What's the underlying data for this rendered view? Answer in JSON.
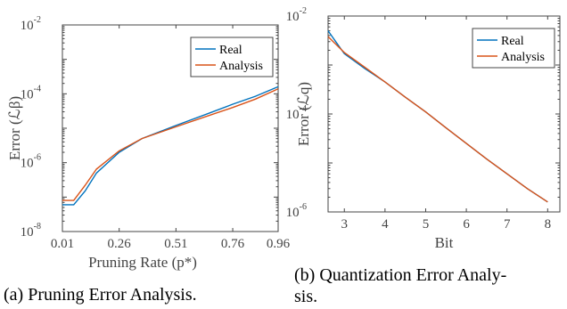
{
  "colors": {
    "real": "#0072BD",
    "analysis": "#D95319",
    "axis": "#444444"
  },
  "chart_data": [
    {
      "type": "line",
      "log_y": true,
      "xlabel": "Pruning Rate (p*)",
      "ylabel": "Error (ℒβ)",
      "xlim": [
        0.01,
        0.96
      ],
      "ylim": [
        1e-08,
        0.01
      ],
      "x_ticks": [
        0.01,
        0.26,
        0.51,
        0.76,
        0.96
      ],
      "x_tick_labels": [
        "0.01",
        "0.26",
        "0.51",
        "0.76",
        "0.96"
      ],
      "y_ticks": [
        1e-08,
        1e-06,
        0.0001,
        0.01
      ],
      "y_tick_base": [
        "10",
        "10",
        "10",
        "10"
      ],
      "y_tick_exp": [
        "-8",
        "-6",
        "-4",
        "-2"
      ],
      "legend": {
        "position": "top-right",
        "entries": [
          "Real",
          "Analysis"
        ]
      },
      "grid": false,
      "series": [
        {
          "name": "Real",
          "x": [
            0.01,
            0.06,
            0.11,
            0.16,
            0.26,
            0.36,
            0.51,
            0.66,
            0.76,
            0.86,
            0.96
          ],
          "y": [
            6e-08,
            6e-08,
            1.5e-07,
            5e-07,
            2e-06,
            5e-06,
            1.2e-05,
            2.8e-05,
            5e-05,
            8.5e-05,
            0.00016
          ]
        },
        {
          "name": "Analysis",
          "x": [
            0.01,
            0.06,
            0.11,
            0.16,
            0.26,
            0.36,
            0.51,
            0.66,
            0.76,
            0.86,
            0.96
          ],
          "y": [
            8e-08,
            8e-08,
            2.2e-07,
            6.5e-07,
            2.2e-06,
            5e-06,
            1.1e-05,
            2.4e-05,
            4e-05,
            7e-05,
            0.00014
          ]
        }
      ]
    },
    {
      "type": "line",
      "log_y": true,
      "xlabel": "Bit",
      "ylabel": "Error (ℒq)",
      "xlim": [
        2.6,
        8.3
      ],
      "ylim": [
        1e-06,
        0.01
      ],
      "x_ticks": [
        3,
        4,
        5,
        6,
        7,
        8
      ],
      "x_tick_labels": [
        "3",
        "4",
        "5",
        "6",
        "7",
        "8"
      ],
      "y_ticks": [
        1e-06,
        0.0001,
        0.01
      ],
      "y_tick_base": [
        "10",
        "10",
        "10"
      ],
      "y_tick_exp": [
        "-6",
        "-4",
        "-2"
      ],
      "legend": {
        "position": "top-right",
        "entries": [
          "Real",
          "Analysis"
        ]
      },
      "grid": false,
      "series": [
        {
          "name": "Real",
          "x": [
            2.6,
            3,
            3.5,
            4,
            4.5,
            5,
            5.5,
            6,
            6.5,
            7,
            7.5,
            8
          ],
          "y": [
            0.005,
            0.0017,
            0.00085,
            0.00045,
            0.00022,
            0.00011,
            5.2e-05,
            2.5e-05,
            1.2e-05,
            6e-06,
            3e-06,
            1.6e-06
          ]
        },
        {
          "name": "Analysis",
          "x": [
            2.6,
            3,
            3.5,
            4,
            4.5,
            5,
            5.5,
            6,
            6.5,
            7,
            7.5,
            8
          ],
          "y": [
            0.0038,
            0.0018,
            0.0009,
            0.00045,
            0.00022,
            0.00011,
            5.2e-05,
            2.5e-05,
            1.2e-05,
            6e-06,
            3e-06,
            1.6e-06
          ]
        }
      ]
    }
  ],
  "captions": {
    "a": "(a) Pruning Error Analysis.",
    "b_line1": "(b) Quantization Error Analy-",
    "b_line2": "sis."
  }
}
